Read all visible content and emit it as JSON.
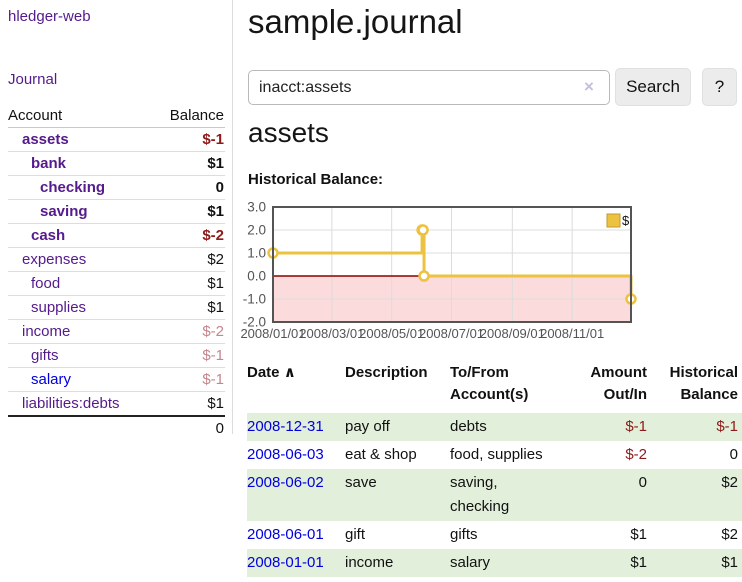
{
  "app": {
    "brand": "hledger-web",
    "nav_journal": "Journal"
  },
  "sidebar": {
    "header": {
      "account": "Account",
      "balance": "Balance"
    },
    "rows": [
      {
        "name": "assets",
        "balance": "$-1",
        "indent": 1,
        "bold": true,
        "balance_color": "negative"
      },
      {
        "name": "bank",
        "balance": "$1",
        "indent": 2,
        "bold": true
      },
      {
        "name": "checking",
        "balance": "0",
        "indent": 3,
        "bold": true
      },
      {
        "name": "saving",
        "balance": "$1",
        "indent": 3,
        "bold": true
      },
      {
        "name": "cash",
        "balance": "$-2",
        "indent": 2,
        "bold": true,
        "balance_color": "negative"
      },
      {
        "name": "expenses",
        "balance": "$2",
        "indent": 1,
        "bold": false
      },
      {
        "name": "food",
        "balance": "$1",
        "indent": 2,
        "bold": false
      },
      {
        "name": "supplies",
        "balance": "$1",
        "indent": 2,
        "bold": false
      },
      {
        "name": "income",
        "balance": "$-2",
        "indent": 1,
        "bold": false,
        "balance_color": "faded-negative"
      },
      {
        "name": "gifts",
        "balance": "$-1",
        "indent": 2,
        "bold": false,
        "balance_color": "faded-negative"
      },
      {
        "name": "salary",
        "balance": "$-1",
        "indent": 2,
        "bold": false,
        "balance_color": "faded-negative",
        "name_color": "blue"
      },
      {
        "name": "liabilities:debts",
        "balance": "$1",
        "indent": 1,
        "bold": false
      }
    ],
    "total": "0"
  },
  "header": {
    "title": "sample.journal"
  },
  "search": {
    "value": "inacct:assets",
    "clear_icon": "×",
    "button_label": "Search",
    "help_label": "?"
  },
  "account_page": {
    "heading": "assets",
    "chart_label": "Historical Balance:"
  },
  "chart_data": {
    "type": "line",
    "step": true,
    "title": "Historical Balance:",
    "series": [
      {
        "name": "$",
        "color": "#edc240",
        "points": [
          [
            "2008-01-01",
            1
          ],
          [
            "2008-06-01",
            2
          ],
          [
            "2008-06-02",
            2
          ],
          [
            "2008-06-03",
            0
          ],
          [
            "2008-12-31",
            -1
          ]
        ]
      }
    ],
    "xlim": [
      "2008-01-01",
      "2008-12-31"
    ],
    "ylim": [
      -2,
      3
    ],
    "x_ticks": [
      "2008/01/01",
      "2008/03/01",
      "2008/05/01",
      "2008/07/01",
      "2008/09/01",
      "2008/11/01"
    ],
    "y_ticks": [
      3.0,
      2.0,
      1.0,
      0.0,
      -1.0,
      -2.0
    ],
    "legend_position": "top-right",
    "grid": true,
    "negative_region_shaded": true
  },
  "register": {
    "header": {
      "date": "Date",
      "sort_indicator": "∧",
      "description": "Description",
      "tofrom_line1": "To/From",
      "tofrom_line2": "Account(s)",
      "amount_line1": "Amount",
      "amount_line2": "Out/In",
      "balance_line1": "Historical",
      "balance_line2": "Balance"
    },
    "rows": [
      {
        "date": "2008-12-31",
        "description": "pay off",
        "accounts": "debts",
        "amount": "$-1",
        "balance": "$-1"
      },
      {
        "date": "2008-06-03",
        "description": "eat & shop",
        "accounts": "food, supplies",
        "amount": "$-2",
        "balance": "0"
      },
      {
        "date": "2008-06-02",
        "description": "save",
        "accounts": "saving, checking",
        "amount": "0",
        "balance": "$2"
      },
      {
        "date": "2008-06-01",
        "description": "gift",
        "accounts": "gifts",
        "amount": "$1",
        "balance": "$2"
      },
      {
        "date": "2008-01-01",
        "description": "income",
        "accounts": "salary",
        "amount": "$1",
        "balance": "$1"
      }
    ]
  },
  "colors": {
    "purple": "#551a8b",
    "blue": "#0000dd",
    "negative": "#8e1919",
    "faded_negative": "#c4858d",
    "row_green": "#e2efda",
    "chart_line": "#edc240",
    "chart_negative_bg": "#fbdbdb",
    "chart_zero_line": "#8b0000",
    "chart_grid": "#dcdcdc",
    "chart_border": "#545454",
    "chart_axis_text": "#545454",
    "chart_legend_border": "#c3992f",
    "button_bg": "#ececec",
    "input_border": "#b9b9b9",
    "clear_icon": "#c6bede"
  }
}
